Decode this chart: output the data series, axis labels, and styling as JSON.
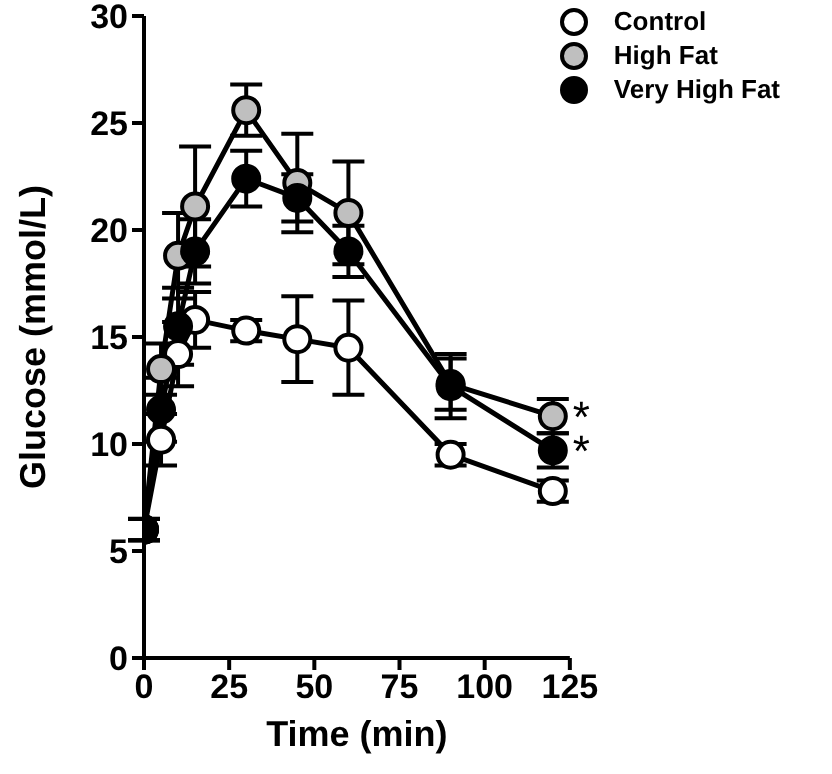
{
  "chart_data": {
    "type": "line",
    "xlabel": "Time (min)",
    "ylabel": "Glucose (mmol/L)",
    "x": [
      0,
      5,
      10,
      15,
      30,
      45,
      60,
      90,
      120
    ],
    "series": [
      {
        "name": "Control",
        "color": "#ffffff",
        "values": [
          6,
          10.2,
          14.2,
          15.8,
          15.3,
          14.9,
          14.5,
          9.5,
          7.8
        ],
        "errors": [
          0.5,
          1.2,
          1.5,
          1.3,
          0.5,
          2,
          2.2,
          0.5,
          0.5
        ]
      },
      {
        "name": "High Fat",
        "color": "#bfbfbf",
        "values": [
          6,
          13.5,
          18.8,
          21.1,
          25.6,
          22.2,
          20.8,
          12.8,
          11.3
        ],
        "errors": [
          0.5,
          1.2,
          2,
          2.8,
          1.2,
          2.3,
          2.4,
          1.2,
          0.8
        ]
      },
      {
        "name": "Very High Fat",
        "color": "#000000",
        "values": [
          6,
          11.6,
          15.5,
          19,
          22.4,
          21.5,
          19,
          12.7,
          9.7
        ],
        "errors": [
          0.5,
          1.5,
          1.8,
          1.5,
          1.3,
          1.1,
          1.2,
          1.5,
          0.8
        ]
      }
    ],
    "annotations": [
      {
        "text": "*",
        "x": 120,
        "y": 11.3
      },
      {
        "text": "*",
        "x": 120,
        "y": 9.7
      }
    ],
    "xlim": [
      0,
      125
    ],
    "xticks": [
      0,
      25,
      50,
      75,
      100,
      125
    ],
    "ylim": [
      0,
      30
    ],
    "yticks": [
      0,
      5,
      10,
      15,
      20,
      25,
      30
    ],
    "grid": false,
    "legend": "top right",
    "marker": "circle",
    "line_style": "solid"
  }
}
